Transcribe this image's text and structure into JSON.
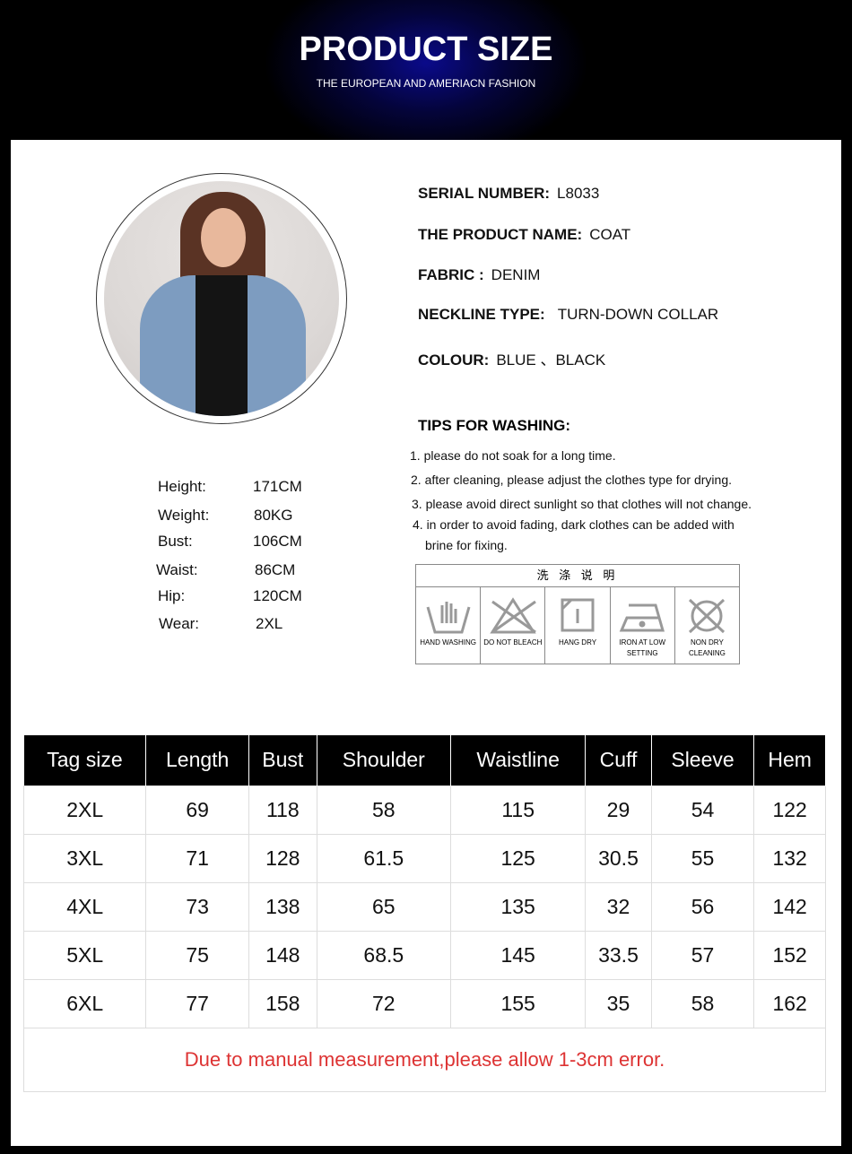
{
  "header": {
    "title": "PRODUCT SIZE",
    "subtitle": "THE EUROPEAN AND AMERIACN FASHION"
  },
  "specs": [
    {
      "label": "SERIAL NUMBER:",
      "value": "L8033"
    },
    {
      "label": "THE PRODUCT NAME:",
      "value": "COAT"
    },
    {
      "label": "FABRIC :",
      "value": "DENIM"
    },
    {
      "label": "NECKLINE TYPE:",
      "value": "TURN-DOWN COLLAR"
    },
    {
      "label": "COLOUR:",
      "value": "BLUE 、BLACK"
    }
  ],
  "tips": {
    "title": "TIPS FOR WASHING:",
    "items": [
      "1. please do not soak for a long time.",
      "2. after cleaning, please adjust the clothes type for drying.",
      "3. please avoid direct sunlight so that clothes will not change.",
      "4. in order to avoid fading, dark clothes can be added with",
      "brine for fixing."
    ]
  },
  "model": [
    {
      "label": "Height:",
      "value": "171CM"
    },
    {
      "label": "Weight:",
      "value": "80KG"
    },
    {
      "label": "Bust:",
      "value": "106CM"
    },
    {
      "label": "Waist:",
      "value": "86CM"
    },
    {
      "label": "Hip:",
      "value": "120CM"
    },
    {
      "label": "Wear:",
      "value": "2XL"
    }
  ],
  "care": {
    "title": "洗 涤 说 明",
    "items": [
      "HAND WASHING",
      "DO NOT BLEACH",
      "HANG DRY",
      "IRON AT LOW SETTING",
      "NON DRY CLEANING"
    ]
  },
  "table": {
    "headers": [
      "Tag size",
      "Length",
      "Bust",
      "Shoulder",
      "Waistline",
      "Cuff",
      "Sleeve",
      "Hem"
    ],
    "rows": [
      [
        "2XL",
        "69",
        "118",
        "58",
        "115",
        "29",
        "54",
        "122"
      ],
      [
        "3XL",
        "71",
        "128",
        "61.5",
        "125",
        "30.5",
        "55",
        "132"
      ],
      [
        "4XL",
        "73",
        "138",
        "65",
        "135",
        "32",
        "56",
        "142"
      ],
      [
        "5XL",
        "75",
        "148",
        "68.5",
        "145",
        "33.5",
        "57",
        "152"
      ],
      [
        "6XL",
        "77",
        "158",
        "72",
        "155",
        "35",
        "58",
        "162"
      ]
    ],
    "note": "Due to manual measurement,please allow 1-3cm error."
  }
}
